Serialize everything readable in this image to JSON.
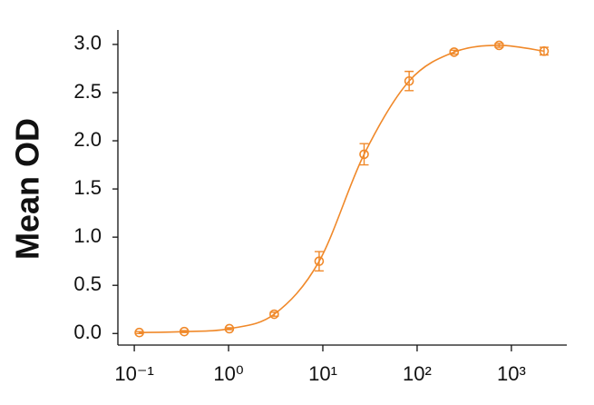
{
  "chart_data": {
    "type": "scatter",
    "y_label": "Mean OD",
    "x_scale": "log",
    "xlim": [
      0.067,
      3870
    ],
    "ylim": [
      -0.12,
      3.15
    ],
    "xticks": [
      {
        "value": 0.1,
        "label": "10⁻¹"
      },
      {
        "value": 1,
        "label": "10⁰"
      },
      {
        "value": 10,
        "label": "10¹"
      },
      {
        "value": 100,
        "label": "10²"
      },
      {
        "value": 1000,
        "label": "10³"
      }
    ],
    "yticks": [
      {
        "value": 0,
        "label": "0.0"
      },
      0.5,
      {
        "value": 1,
        "label": "1.0"
      },
      1.5,
      {
        "value": 2,
        "label": "2.0"
      },
      2.5,
      {
        "value": 3,
        "label": "3.0"
      }
    ],
    "series": [
      {
        "color": "#f0892a",
        "x": [
          0.113,
          0.339,
          1.02,
          3.05,
          9.14,
          27.4,
          82.3,
          246.9,
          740.7,
          2222
        ],
        "values": [
          0.01,
          0.02,
          0.05,
          0.2,
          0.75,
          1.86,
          2.62,
          2.92,
          2.99,
          2.93
        ],
        "errors": [
          0.01,
          0.01,
          0.01,
          0.02,
          0.1,
          0.11,
          0.1,
          0.02,
          0.02,
          0.04
        ]
      }
    ]
  }
}
